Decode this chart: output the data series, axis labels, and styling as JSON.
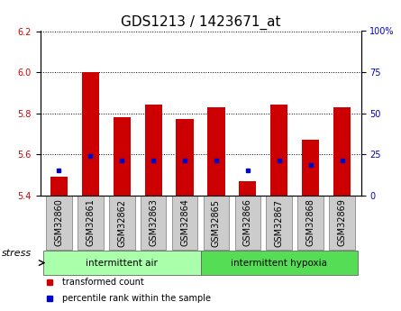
{
  "title": "GDS1213 / 1423671_at",
  "samples": [
    "GSM32860",
    "GSM32861",
    "GSM32862",
    "GSM32863",
    "GSM32864",
    "GSM32865",
    "GSM32866",
    "GSM32867",
    "GSM32868",
    "GSM32869"
  ],
  "red_values": [
    5.49,
    6.0,
    5.78,
    5.84,
    5.77,
    5.83,
    5.47,
    5.84,
    5.67,
    5.83
  ],
  "blue_values": [
    5.52,
    5.59,
    5.57,
    5.57,
    5.57,
    5.57,
    5.52,
    5.57,
    5.55,
    5.57
  ],
  "baseline": 5.4,
  "ylim_left": [
    5.4,
    6.2
  ],
  "ylim_right": [
    0,
    100
  ],
  "yticks_left": [
    5.4,
    5.6,
    5.8,
    6.0,
    6.2
  ],
  "yticks_right": [
    0,
    25,
    50,
    75,
    100
  ],
  "ytick_labels_right": [
    "0",
    "25",
    "50",
    "75",
    "100%"
  ],
  "groups": [
    {
      "label": "intermittent air",
      "start": 0,
      "end": 5,
      "color": "#aaffaa"
    },
    {
      "label": "intermittent hypoxia",
      "start": 5,
      "end": 10,
      "color": "#55dd55"
    }
  ],
  "group_factor_label": "stress",
  "red_color": "#cc0000",
  "blue_color": "#0000cc",
  "bar_width": 0.55,
  "tick_bg_color": "#cccccc",
  "legend_red": "transformed count",
  "legend_blue": "percentile rank within the sample",
  "grid_color": "black",
  "title_fontsize": 11,
  "tick_fontsize": 7,
  "axis_color_left": "#cc0000",
  "axis_color_right": "#0000cc"
}
